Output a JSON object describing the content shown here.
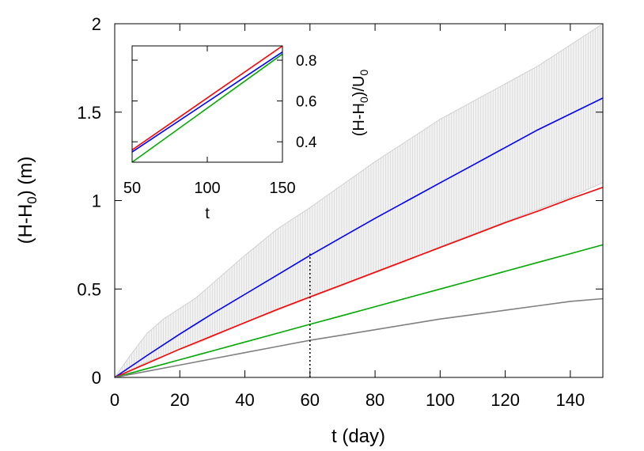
{
  "chart_data": [
    {
      "type": "line",
      "xlabel": "t (day)",
      "ylabel_main": "(H-H",
      "ylabel_sub": "0",
      "ylabel_tail": ") (m)",
      "xlim": [
        0,
        150
      ],
      "ylim": [
        0,
        2
      ],
      "xticks": [
        0,
        20,
        40,
        60,
        80,
        100,
        120,
        140
      ],
      "yticks": [
        0,
        0.5,
        1,
        1.5,
        2
      ],
      "ytick_labels": [
        "0",
        "0.5",
        "1",
        "1.5",
        "2"
      ],
      "grid": false,
      "series": [
        {
          "color": "#0000ff",
          "x": [
            0,
            10,
            20,
            30,
            40,
            50,
            60,
            70,
            80,
            90,
            100,
            110,
            120,
            130,
            140,
            150
          ],
          "values": [
            0,
            0.125,
            0.245,
            0.36,
            0.47,
            0.58,
            0.69,
            0.795,
            0.9,
            1.0,
            1.1,
            1.2,
            1.3,
            1.4,
            1.49,
            1.58
          ]
        },
        {
          "color": "#ff0000",
          "x": [
            0,
            10,
            20,
            30,
            40,
            50,
            60,
            70,
            80,
            90,
            100,
            110,
            120,
            130,
            140,
            150
          ],
          "values": [
            0,
            0.08,
            0.16,
            0.235,
            0.31,
            0.385,
            0.455,
            0.525,
            0.595,
            0.665,
            0.735,
            0.805,
            0.875,
            0.94,
            1.01,
            1.075
          ]
        },
        {
          "color": "#00aa00",
          "x": [
            0,
            10,
            20,
            30,
            40,
            50,
            60,
            70,
            80,
            90,
            100,
            110,
            120,
            130,
            140,
            150
          ],
          "values": [
            0,
            0.05,
            0.1,
            0.15,
            0.2,
            0.25,
            0.3,
            0.35,
            0.4,
            0.45,
            0.5,
            0.55,
            0.6,
            0.65,
            0.7,
            0.75
          ]
        },
        {
          "color": "#808080",
          "x": [
            0,
            10,
            20,
            30,
            40,
            50,
            60,
            70,
            80,
            90,
            100,
            110,
            120,
            130,
            140,
            150
          ],
          "values": [
            0,
            0.035,
            0.07,
            0.105,
            0.14,
            0.175,
            0.21,
            0.24,
            0.27,
            0.3,
            0.33,
            0.355,
            0.38,
            0.405,
            0.43,
            0.445
          ]
        }
      ],
      "band": {
        "color": "#d0d0d0",
        "x": [
          0,
          5,
          10,
          15,
          20,
          25,
          30,
          40,
          50,
          60,
          70,
          80,
          90,
          100,
          110,
          120,
          130,
          140,
          150
        ],
        "upper": [
          0,
          0.13,
          0.25,
          0.33,
          0.39,
          0.45,
          0.53,
          0.69,
          0.84,
          0.96,
          1.09,
          1.22,
          1.34,
          1.46,
          1.56,
          1.66,
          1.76,
          1.88,
          2.0
        ],
        "lower": [
          0,
          0.04,
          0.09,
          0.12,
          0.16,
          0.19,
          0.23,
          0.31,
          0.38,
          0.45,
          0.52,
          0.59,
          0.66,
          0.74,
          0.81,
          0.88,
          0.95,
          1.02,
          1.1
        ]
      },
      "vline": {
        "x": 60,
        "y_top": 0.7,
        "style": "dotted",
        "color": "#000000"
      }
    },
    {
      "type": "line",
      "xlabel": "t",
      "ylabel_main": "(H-H",
      "ylabel_sub": "0",
      "ylabel_tail": ")/U",
      "ylabel_sub2": "0",
      "xlim": [
        50,
        150
      ],
      "ylim": [
        0.3,
        0.87
      ],
      "xticks": [
        50,
        100,
        150
      ],
      "yticks": [
        0.4,
        0.6,
        0.8
      ],
      "ytick_labels": [
        "0.4",
        "0.6",
        "0.8"
      ],
      "grid": false,
      "series": [
        {
          "color": "#ff0000",
          "x": [
            50,
            150
          ],
          "values": [
            0.36,
            0.87
          ]
        },
        {
          "color": "#0000ff",
          "x": [
            50,
            150
          ],
          "values": [
            0.35,
            0.84
          ]
        },
        {
          "color": "#00aa00",
          "x": [
            50,
            150
          ],
          "values": [
            0.3,
            0.83
          ]
        }
      ]
    }
  ]
}
